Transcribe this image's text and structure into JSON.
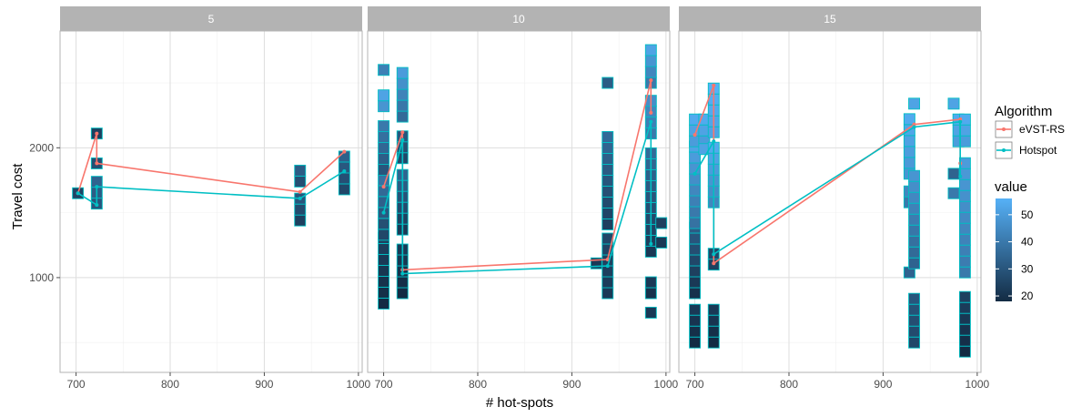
{
  "chart_data": {
    "type": "scatter",
    "facet_variable_values": [
      "5",
      "10",
      "15"
    ],
    "xlabel": "# hot-spots",
    "ylabel": "Travel cost",
    "xlim": [
      683,
      1004
    ],
    "ylim": [
      270,
      2900
    ],
    "x_ticks": [
      700,
      800,
      900,
      1000
    ],
    "y_ticks": [
      1000,
      2000
    ],
    "grid": true,
    "legend_position": "right",
    "color_legend": {
      "title": "Algorithm",
      "entries": [
        {
          "name": "eVST-RS",
          "color": "#F8766D"
        },
        {
          "name": "Hotspot",
          "color": "#00BFC4"
        }
      ]
    },
    "fill_legend": {
      "title": "value",
      "min": 18,
      "max": 56,
      "ticks": [
        20,
        30,
        40,
        50
      ],
      "low_color": "#132B43",
      "high_color": "#56B1F7"
    },
    "panels": [
      {
        "title": "5",
        "series": [
          {
            "name": "eVST-RS",
            "x": [
              702,
              722,
              722,
              938,
              985
            ],
            "y": [
              1650,
              2110,
              1880,
              1660,
              1970
            ]
          },
          {
            "name": "Hotspot",
            "x": [
              702,
              722,
              722,
              938,
              985
            ],
            "y": [
              1650,
              1560,
              1700,
              1610,
              1820
            ]
          }
        ],
        "tiles": [
          {
            "x": 702,
            "ymin": 1650,
            "ymax": 1650,
            "v0": 25,
            "v1": 25
          },
          {
            "x": 722,
            "ymin": 1570,
            "ymax": 1730,
            "v0": 30,
            "v1": 34
          },
          {
            "x": 722,
            "ymin": 1880,
            "ymax": 1880,
            "v0": 28,
            "v1": 28
          },
          {
            "x": 722,
            "ymin": 2110,
            "ymax": 2110,
            "v0": 24,
            "v1": 24
          },
          {
            "x": 938,
            "ymin": 1440,
            "ymax": 1580,
            "v0": 24,
            "v1": 30
          },
          {
            "x": 938,
            "ymin": 1740,
            "ymax": 1810,
            "v0": 28,
            "v1": 32
          },
          {
            "x": 985,
            "ymin": 1680,
            "ymax": 1960,
            "v0": 26,
            "v1": 33
          }
        ]
      },
      {
        "title": "10",
        "series": [
          {
            "name": "eVST-RS",
            "x": [
              700,
              720,
              720,
              938,
              984,
              984
            ],
            "y": [
              1700,
              2120,
              1060,
              1140,
              2520,
              2270
            ]
          },
          {
            "name": "Hotspot",
            "x": [
              700,
              720,
              720,
              938,
              984,
              984
            ],
            "y": [
              1500,
              2060,
              1030,
              1090,
              2200,
              1260
            ]
          }
        ],
        "tiles": [
          {
            "x": 700,
            "ymin": 800,
            "ymax": 1280,
            "v0": 18,
            "v1": 24
          },
          {
            "x": 700,
            "ymin": 1330,
            "ymax": 1750,
            "v0": 26,
            "v1": 38
          },
          {
            "x": 700,
            "ymin": 1830,
            "ymax": 2190,
            "v0": 30,
            "v1": 40
          },
          {
            "x": 700,
            "ymin": 2320,
            "ymax": 2400,
            "v0": 48,
            "v1": 52
          },
          {
            "x": 700,
            "ymin": 2600,
            "ymax": 2640,
            "v0": 42,
            "v1": 46
          },
          {
            "x": 720,
            "ymin": 880,
            "ymax": 1210,
            "v0": 18,
            "v1": 22
          },
          {
            "x": 720,
            "ymin": 1370,
            "ymax": 1820,
            "v0": 22,
            "v1": 34
          },
          {
            "x": 720,
            "ymin": 1920,
            "ymax": 2120,
            "v0": 26,
            "v1": 30
          },
          {
            "x": 720,
            "ymin": 2240,
            "ymax": 2560,
            "v0": 36,
            "v1": 50
          },
          {
            "x": 926,
            "ymin": 1110,
            "ymax": 1110,
            "v0": 22,
            "v1": 22
          },
          {
            "x": 938,
            "ymin": 880,
            "ymax": 1290,
            "v0": 22,
            "v1": 26
          },
          {
            "x": 938,
            "ymin": 1410,
            "ymax": 2110,
            "v0": 24,
            "v1": 36
          },
          {
            "x": 938,
            "ymin": 2500,
            "ymax": 2500,
            "v0": 32,
            "v1": 32
          },
          {
            "x": 984,
            "ymin": 730,
            "ymax": 730,
            "v0": 22,
            "v1": 22
          },
          {
            "x": 984,
            "ymin": 880,
            "ymax": 960,
            "v0": 20,
            "v1": 22
          },
          {
            "x": 984,
            "ymin": 1200,
            "ymax": 1960,
            "v0": 22,
            "v1": 36
          },
          {
            "x": 984,
            "ymin": 2110,
            "ymax": 2330,
            "v0": 40,
            "v1": 46
          },
          {
            "x": 984,
            "ymin": 2500,
            "ymax": 2730,
            "v0": 40,
            "v1": 52
          },
          {
            "x": 995,
            "ymin": 1270,
            "ymax": 1270,
            "v0": 22,
            "v1": 22
          },
          {
            "x": 995,
            "ymin": 1420,
            "ymax": 1420,
            "v0": 24,
            "v1": 24
          }
        ]
      },
      {
        "title": "15",
        "series": [
          {
            "name": "eVST-RS",
            "x": [
              700,
              720,
              720,
              933,
              982,
              982
            ],
            "y": [
              2100,
              2480,
              1110,
              2180,
              2220,
              1880
            ]
          },
          {
            "name": "Hotspot",
            "x": [
              700,
              720,
              720,
              933,
              982,
              982
            ],
            "y": [
              1800,
              2050,
              1180,
              2160,
              2200,
              1780
            ]
          }
        ],
        "tiles": [
          {
            "x": 700,
            "ymin": 500,
            "ymax": 740,
            "v0": 18,
            "v1": 22
          },
          {
            "x": 700,
            "ymin": 880,
            "ymax": 1350,
            "v0": 20,
            "v1": 32
          },
          {
            "x": 700,
            "ymin": 1420,
            "ymax": 1980,
            "v0": 38,
            "v1": 52
          },
          {
            "x": 700,
            "ymin": 2050,
            "ymax": 2200,
            "v0": 50,
            "v1": 54
          },
          {
            "x": 710,
            "ymin": 2050,
            "ymax": 2200,
            "v0": 50,
            "v1": 54
          },
          {
            "x": 710,
            "ymin": 1990,
            "ymax": 1990,
            "v0": 52,
            "v1": 52
          },
          {
            "x": 720,
            "ymin": 500,
            "ymax": 740,
            "v0": 18,
            "v1": 22
          },
          {
            "x": 720,
            "ymin": 1100,
            "ymax": 1180,
            "v0": 24,
            "v1": 26
          },
          {
            "x": 720,
            "ymin": 1580,
            "ymax": 1980,
            "v0": 44,
            "v1": 54
          },
          {
            "x": 720,
            "ymin": 2120,
            "ymax": 2490,
            "v0": 52,
            "v1": 56
          },
          {
            "x": 928,
            "ymin": 1040,
            "ymax": 1040,
            "v0": 34,
            "v1": 34
          },
          {
            "x": 928,
            "ymin": 1580,
            "ymax": 1650,
            "v0": 40,
            "v1": 44
          },
          {
            "x": 928,
            "ymin": 1800,
            "ymax": 2180,
            "v0": 48,
            "v1": 54
          },
          {
            "x": 933,
            "ymin": 500,
            "ymax": 810,
            "v0": 26,
            "v1": 30
          },
          {
            "x": 933,
            "ymin": 1110,
            "ymax": 1800,
            "v0": 34,
            "v1": 48
          },
          {
            "x": 933,
            "ymin": 2340,
            "ymax": 2340,
            "v0": 52,
            "v1": 52
          },
          {
            "x": 975,
            "ymin": 1650,
            "ymax": 1650,
            "v0": 40,
            "v1": 40
          },
          {
            "x": 975,
            "ymin": 1800,
            "ymax": 1800,
            "v0": 34,
            "v1": 34
          },
          {
            "x": 975,
            "ymin": 2340,
            "ymax": 2340,
            "v0": 52,
            "v1": 52
          },
          {
            "x": 980,
            "ymin": 2050,
            "ymax": 2180,
            "v0": 50,
            "v1": 54
          },
          {
            "x": 987,
            "ymin": 430,
            "ymax": 810,
            "v0": 18,
            "v1": 24
          },
          {
            "x": 987,
            "ymin": 1040,
            "ymax": 1880,
            "v0": 40,
            "v1": 50
          },
          {
            "x": 987,
            "ymin": 2050,
            "ymax": 2180,
            "v0": 50,
            "v1": 54
          }
        ]
      }
    ]
  }
}
